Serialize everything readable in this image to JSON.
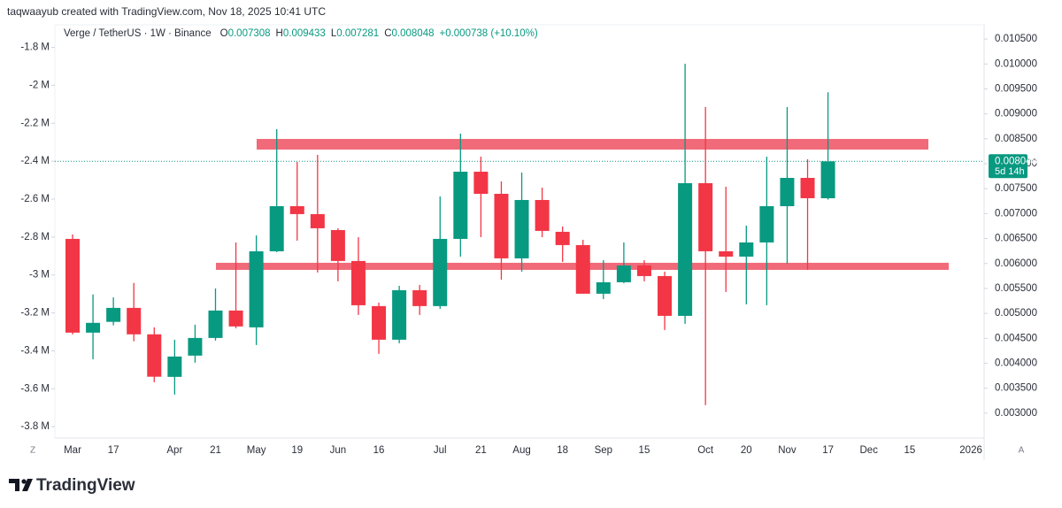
{
  "header": {
    "attribution": "taqwaayub created with TradingView.com, Nov 18, 2025 10:41 UTC"
  },
  "chart_data": {
    "type": "candlestick",
    "title": "Verge / TetherUS · 1W · Binance",
    "ohlc_labels": [
      "O",
      "H",
      "L",
      "C"
    ],
    "change_label": "+0.000738 (+10.10%)",
    "countdown": "5d 14h",
    "categories": [
      "Mar",
      null,
      "17",
      null,
      null,
      "Apr",
      null,
      "21",
      null,
      "May",
      null,
      "19",
      null,
      "Jun",
      null,
      "16",
      null,
      null,
      "Jul",
      null,
      "21",
      null,
      "Aug",
      null,
      "18",
      null,
      "Sep",
      null,
      "15",
      null,
      null,
      "Oct",
      null,
      "20",
      null,
      "Nov",
      null,
      "17",
      null,
      "Dec",
      null,
      "15",
      null,
      null,
      "2026"
    ],
    "open": [
      0.006493,
      0.004614,
      0.00483,
      0.00511,
      0.00458,
      0.003727,
      0.004153,
      0.004507,
      0.005057,
      0.00472,
      0.006245,
      0.007149,
      0.00699,
      0.00667,
      0.00605,
      0.005146,
      0.004472,
      0.005465,
      0.005146,
      0.006493,
      0.00784,
      0.007397,
      0.006103,
      0.007273,
      0.006635,
      0.006369,
      0.005394,
      0.005624,
      0.005961,
      0.005748,
      0.00495,
      0.00761,
      0.006245,
      0.006138,
      0.006422,
      0.007149,
      0.007716,
      0.007308,
      null,
      null,
      null,
      null,
      null,
      null,
      null
    ],
    "high": [
      0.006582,
      0.00538,
      0.00532,
      0.00561,
      0.00472,
      0.004472,
      0.004773,
      0.0055,
      0.006422,
      0.006564,
      0.008692,
      0.008036,
      0.008177,
      0.006706,
      0.006528,
      0.005216,
      0.005553,
      0.005571,
      0.007344,
      0.008603,
      0.008142,
      0.007645,
      0.007823,
      0.007521,
      0.006741,
      0.006475,
      0.006067,
      0.006422,
      0.006067,
      0.005837,
      0.010004,
      0.009135,
      0.007539,
      0.006759,
      0.008142,
      0.009135,
      0.008089,
      0.009433,
      null,
      null,
      null,
      null,
      null,
      null,
      null
    ],
    "low": [
      0.004578,
      0.00408,
      0.00476,
      0.00444,
      0.00362,
      0.003373,
      0.004011,
      0.004454,
      0.004702,
      0.004365,
      0.006227,
      0.006458,
      0.005819,
      0.005642,
      0.004968,
      0.004188,
      0.004401,
      0.004968,
      0.005092,
      0.006138,
      0.006528,
      0.005677,
      0.005837,
      0.006528,
      0.006032,
      0.005394,
      0.005287,
      0.005606,
      0.005642,
      0.004667,
      0.004791,
      0.00316,
      0.005429,
      0.005181,
      0.005163,
      0.005997,
      0.005872,
      0.007281,
      null,
      null,
      null,
      null,
      null,
      null,
      null
    ],
    "close": [
      0.004614,
      0.00481,
      0.00511,
      0.00458,
      0.00373,
      0.004135,
      0.004507,
      0.005057,
      0.004738,
      0.006245,
      0.007149,
      0.00699,
      0.006706,
      0.00605,
      0.005163,
      0.004472,
      0.005465,
      0.005146,
      0.006493,
      0.00784,
      0.007397,
      0.006103,
      0.007273,
      0.006653,
      0.006369,
      0.005394,
      0.005624,
      0.005961,
      0.005748,
      0.00495,
      0.00761,
      0.006245,
      0.006138,
      0.006422,
      0.007149,
      0.007716,
      0.007309,
      0.008048,
      null,
      null,
      null,
      null,
      null,
      null,
      null
    ],
    "up_color": "#089981",
    "down_color": "#f23645",
    "ylim": [
      0.0025,
      0.01075
    ],
    "yticks": [
      {
        "value": 0.0105,
        "label": "0.010500"
      },
      {
        "value": 0.01,
        "label": "0.010000"
      },
      {
        "value": 0.0095,
        "label": "0.009500"
      },
      {
        "value": 0.009,
        "label": "0.009000"
      },
      {
        "value": 0.0085,
        "label": "0.008500"
      },
      {
        "value": 0.008,
        "label": "0.008000"
      },
      {
        "value": 0.0075,
        "label": "0.007500"
      },
      {
        "value": 0.007,
        "label": "0.007000"
      },
      {
        "value": 0.0065,
        "label": "0.006500"
      },
      {
        "value": 0.006,
        "label": "0.006000"
      },
      {
        "value": 0.0055,
        "label": "0.005500"
      },
      {
        "value": 0.005,
        "label": "0.005000"
      },
      {
        "value": 0.0045,
        "label": "0.004500"
      },
      {
        "value": 0.004,
        "label": "0.004000"
      },
      {
        "value": 0.0035,
        "label": "0.003500"
      },
      {
        "value": 0.003,
        "label": "0.003000"
      }
    ],
    "y2lim": [
      -3860000,
      -1690000
    ],
    "y2ticks": [
      {
        "value": -1800000,
        "label": "-1.8 M"
      },
      {
        "value": -2000000,
        "label": "-2 M"
      },
      {
        "value": -2200000,
        "label": "-2.2 M"
      },
      {
        "value": -2400000,
        "label": "-2.4 M"
      },
      {
        "value": -2600000,
        "label": "-2.6 M"
      },
      {
        "value": -2800000,
        "label": "-2.8 M"
      },
      {
        "value": -3000000,
        "label": "-3 M"
      },
      {
        "value": -3200000,
        "label": "-3.2 M"
      },
      {
        "value": -3400000,
        "label": "-3.4 M"
      },
      {
        "value": -3600000,
        "label": "-3.6 M"
      },
      {
        "value": -3800000,
        "label": "-3.8 M"
      }
    ],
    "zones": [
      {
        "low": 0.008284,
        "high": 0.008497,
        "color": "#f05a6a"
      },
      {
        "low": 0.005872,
        "high": 0.006014,
        "color": "#f05a6a"
      }
    ]
  },
  "scale_buttons": [
    "Z",
    "A"
  ],
  "footer": {
    "logo": "TradingView"
  }
}
